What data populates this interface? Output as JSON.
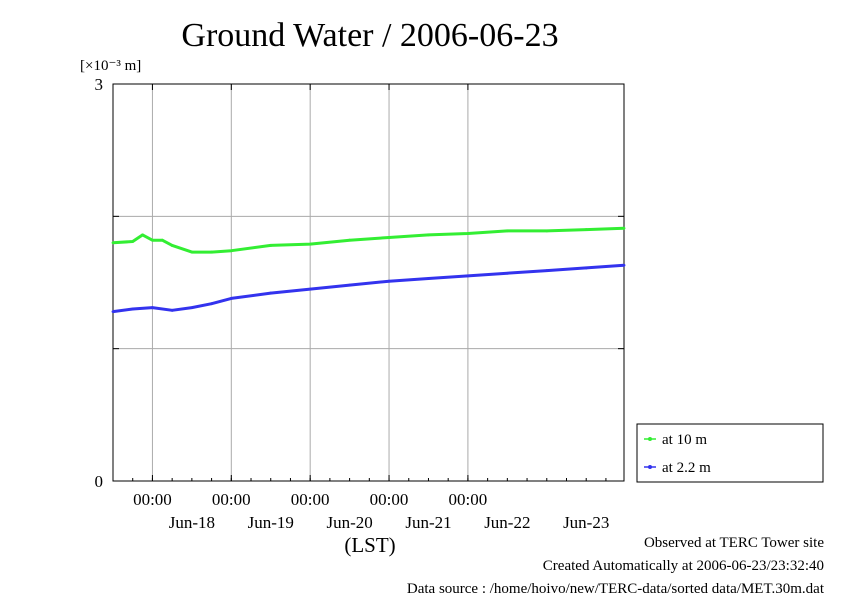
{
  "chart_data": {
    "type": "line",
    "title": "Ground Water / 2006-06-23",
    "ylabel_unit": "[×10⁻³ m]",
    "xlabel": "(LST)",
    "ylim": [
      0,
      3
    ],
    "yticks": [
      0,
      3
    ],
    "ygrid": [
      1,
      2
    ],
    "x_start": "2006-06-17 12:00",
    "x_end": "2006-06-23 23:30",
    "xticks_time": [
      "00:00",
      "00:00",
      "00:00",
      "00:00",
      "00:00"
    ],
    "xticks_time_at": [
      "2006-06-18 00:00",
      "2006-06-19 00:00",
      "2006-06-20 00:00",
      "2006-06-21 00:00",
      "2006-06-22 00:00"
    ],
    "xticks_date": [
      "Jun-18",
      "Jun-19",
      "Jun-20",
      "Jun-21",
      "Jun-22",
      "Jun-23"
    ],
    "xticks_date_at": [
      "2006-06-18 12:00",
      "2006-06-19 12:00",
      "2006-06-20 12:00",
      "2006-06-21 12:00",
      "2006-06-22 12:00",
      "2006-06-23 12:00"
    ],
    "grid": true,
    "legend": "right",
    "series": [
      {
        "name": "at 10 m",
        "color": "#33ee33",
        "x": [
          "2006-06-17 12:00",
          "2006-06-17 18:00",
          "2006-06-17 21:00",
          "2006-06-18 00:00",
          "2006-06-18 03:00",
          "2006-06-18 06:00",
          "2006-06-18 12:00",
          "2006-06-18 18:00",
          "2006-06-19 00:00",
          "2006-06-19 12:00",
          "2006-06-20 00:00",
          "2006-06-20 12:00",
          "2006-06-21 00:00",
          "2006-06-21 12:00",
          "2006-06-22 00:00",
          "2006-06-22 12:00",
          "2006-06-23 00:00",
          "2006-06-23 12:00",
          "2006-06-23 23:30"
        ],
        "values": [
          1.8,
          1.81,
          1.86,
          1.82,
          1.82,
          1.78,
          1.73,
          1.73,
          1.74,
          1.78,
          1.79,
          1.82,
          1.84,
          1.86,
          1.87,
          1.89,
          1.89,
          1.9,
          1.91
        ]
      },
      {
        "name": "at 2.2 m",
        "color": "#3333ee",
        "x": [
          "2006-06-17 12:00",
          "2006-06-17 18:00",
          "2006-06-18 00:00",
          "2006-06-18 06:00",
          "2006-06-18 12:00",
          "2006-06-18 18:00",
          "2006-06-19 00:00",
          "2006-06-19 12:00",
          "2006-06-20 00:00",
          "2006-06-20 12:00",
          "2006-06-21 00:00",
          "2006-06-21 12:00",
          "2006-06-22 00:00",
          "2006-06-22 12:00",
          "2006-06-23 00:00",
          "2006-06-23 12:00",
          "2006-06-23 23:30"
        ],
        "values": [
          1.28,
          1.3,
          1.31,
          1.29,
          1.31,
          1.34,
          1.38,
          1.42,
          1.45,
          1.48,
          1.51,
          1.53,
          1.55,
          1.57,
          1.59,
          1.61,
          1.63
        ]
      }
    ]
  },
  "footer": {
    "line1": "Observed at TERC Tower site",
    "line2": "Created Automatically at 2006-06-23/23:32:40",
    "line3": "Data source : /home/hoivo/new/TERC-data/sorted  data/MET.30m.dat"
  }
}
